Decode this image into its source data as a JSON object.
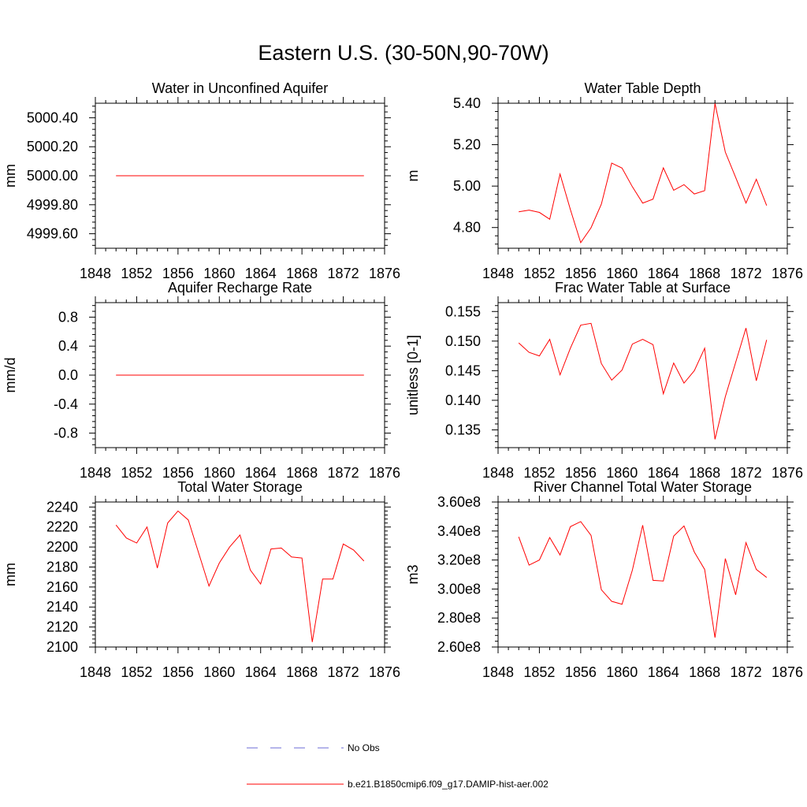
{
  "title": "Eastern U.S. (30-50N,90-70W)",
  "legend": [
    {
      "label": "No Obs",
      "style": "dashed",
      "color": "#6b6bd6"
    },
    {
      "label": "b.e21.B1850cmip6.f09_g17.DAMIP-hist-aer.002",
      "style": "solid",
      "color": "#ff0000"
    }
  ],
  "chart_data": [
    {
      "type": "line",
      "title": "Water in Unconfined Aquifer",
      "xlabel": "",
      "ylabel": "mm",
      "xlim": [
        1848,
        1876
      ],
      "ylim": [
        4999.5,
        5000.5
      ],
      "xticks": [
        1848,
        1852,
        1856,
        1860,
        1864,
        1868,
        1872,
        1876
      ],
      "xtick_labels": [
        "1848",
        "1852",
        "1856",
        "1860",
        "1864",
        "1868",
        "1872",
        "1876"
      ],
      "yticks": [
        4999.6,
        4999.8,
        5000.0,
        5000.2,
        5000.4
      ],
      "ytick_labels": [
        "4999.60",
        "4999.80",
        "5000.00",
        "5000.20",
        "5000.40"
      ],
      "x": [
        1850,
        1851,
        1852,
        1853,
        1854,
        1855,
        1856,
        1857,
        1858,
        1859,
        1860,
        1861,
        1862,
        1863,
        1864,
        1865,
        1866,
        1867,
        1868,
        1869,
        1870,
        1871,
        1872,
        1873,
        1874
      ],
      "series": [
        {
          "color": "#ff0000",
          "values": [
            5000,
            5000,
            5000,
            5000,
            5000,
            5000,
            5000,
            5000,
            5000,
            5000,
            5000,
            5000,
            5000,
            5000,
            5000,
            5000,
            5000,
            5000,
            5000,
            5000,
            5000,
            5000,
            5000,
            5000,
            5000
          ]
        }
      ]
    },
    {
      "type": "line",
      "title": "Water Table Depth",
      "xlabel": "",
      "ylabel": "m",
      "xlim": [
        1848,
        1876
      ],
      "ylim": [
        4.7,
        5.4
      ],
      "xticks": [
        1848,
        1852,
        1856,
        1860,
        1864,
        1868,
        1872,
        1876
      ],
      "xtick_labels": [
        "1848",
        "1852",
        "1856",
        "1860",
        "1864",
        "1868",
        "1872",
        "1876"
      ],
      "yticks": [
        4.8,
        5.0,
        5.2,
        5.4
      ],
      "ytick_labels": [
        "4.80",
        "5.00",
        "5.20",
        "5.40"
      ],
      "x": [
        1850,
        1851,
        1852,
        1853,
        1854,
        1855,
        1856,
        1857,
        1858,
        1859,
        1860,
        1861,
        1862,
        1863,
        1864,
        1865,
        1866,
        1867,
        1868,
        1869,
        1870,
        1871,
        1872,
        1873,
        1874
      ],
      "series": [
        {
          "color": "#ff0000",
          "values": [
            4.876,
            4.884,
            4.873,
            4.84,
            5.058,
            4.887,
            4.727,
            4.799,
            4.913,
            5.111,
            5.087,
            4.997,
            4.918,
            4.937,
            5.088,
            4.98,
            5.007,
            4.962,
            4.978,
            5.399,
            5.164,
            5.042,
            4.918,
            5.033,
            4.906
          ]
        }
      ]
    },
    {
      "type": "line",
      "title": "Aquifer Recharge Rate",
      "xlabel": "",
      "ylabel": "mm/d",
      "xlim": [
        1848,
        1876
      ],
      "ylim": [
        -1.0,
        1.0
      ],
      "xticks": [
        1848,
        1852,
        1856,
        1860,
        1864,
        1868,
        1872,
        1876
      ],
      "xtick_labels": [
        "1848",
        "1852",
        "1856",
        "1860",
        "1864",
        "1868",
        "1872",
        "1876"
      ],
      "yticks": [
        -0.8,
        -0.4,
        0.0,
        0.4,
        0.8
      ],
      "ytick_labels": [
        "-0.8",
        "-0.4",
        "0.0",
        "0.4",
        "0.8"
      ],
      "x": [
        1850,
        1851,
        1852,
        1853,
        1854,
        1855,
        1856,
        1857,
        1858,
        1859,
        1860,
        1861,
        1862,
        1863,
        1864,
        1865,
        1866,
        1867,
        1868,
        1869,
        1870,
        1871,
        1872,
        1873,
        1874
      ],
      "series": [
        {
          "color": "#ff0000",
          "values": [
            0,
            0,
            0,
            0,
            0,
            0,
            0,
            0,
            0,
            0,
            0,
            0,
            0,
            0,
            0,
            0,
            0,
            0,
            0,
            0,
            0,
            0,
            0,
            0,
            0
          ]
        }
      ]
    },
    {
      "type": "line",
      "title": "Frac Water Table at Surface",
      "xlabel": "",
      "ylabel": "unitless [0-1]",
      "xlim": [
        1848,
        1876
      ],
      "ylim": [
        0.132,
        0.1565
      ],
      "xticks": [
        1848,
        1852,
        1856,
        1860,
        1864,
        1868,
        1872,
        1876
      ],
      "xtick_labels": [
        "1848",
        "1852",
        "1856",
        "1860",
        "1864",
        "1868",
        "1872",
        "1876"
      ],
      "yticks": [
        0.135,
        0.14,
        0.145,
        0.15,
        0.155
      ],
      "ytick_labels": [
        "0.135",
        "0.140",
        "0.145",
        "0.150",
        "0.155"
      ],
      "x": [
        1850,
        1851,
        1852,
        1853,
        1854,
        1855,
        1856,
        1857,
        1858,
        1859,
        1860,
        1861,
        1862,
        1863,
        1864,
        1865,
        1866,
        1867,
        1868,
        1869,
        1870,
        1871,
        1872,
        1873,
        1874
      ],
      "series": [
        {
          "color": "#ff0000",
          "values": [
            0.1497,
            0.1481,
            0.1475,
            0.1503,
            0.1443,
            0.1488,
            0.1527,
            0.153,
            0.1462,
            0.1434,
            0.1451,
            0.1495,
            0.1503,
            0.1494,
            0.1411,
            0.1463,
            0.1429,
            0.145,
            0.1488,
            0.1334,
            0.1406,
            0.1464,
            0.1522,
            0.1433,
            0.1502
          ]
        }
      ]
    },
    {
      "type": "line",
      "title": "Total Water Storage",
      "xlabel": "",
      "ylabel": "mm",
      "xlim": [
        1848,
        1876
      ],
      "ylim": [
        2100,
        2245
      ],
      "xticks": [
        1848,
        1852,
        1856,
        1860,
        1864,
        1868,
        1872,
        1876
      ],
      "xtick_labels": [
        "1848",
        "1852",
        "1856",
        "1860",
        "1864",
        "1868",
        "1872",
        "1876"
      ],
      "yticks": [
        2100,
        2120,
        2140,
        2160,
        2180,
        2200,
        2220,
        2240
      ],
      "ytick_labels": [
        "2100",
        "2120",
        "2140",
        "2160",
        "2180",
        "2200",
        "2220",
        "2240"
      ],
      "x": [
        1850,
        1851,
        1852,
        1853,
        1854,
        1855,
        1856,
        1857,
        1858,
        1859,
        1860,
        1861,
        1862,
        1863,
        1864,
        1865,
        1866,
        1867,
        1868,
        1869,
        1870,
        1871,
        1872,
        1873,
        1874
      ],
      "series": [
        {
          "color": "#ff0000",
          "values": [
            2222,
            2209,
            2204,
            2220,
            2179,
            2224,
            2236,
            2227,
            2194,
            2161,
            2184,
            2200,
            2212,
            2177,
            2163,
            2198,
            2199,
            2190,
            2189,
            2105,
            2168,
            2168,
            2203,
            2197,
            2186
          ]
        }
      ]
    },
    {
      "type": "line",
      "title": "River Channel Total Water Storage",
      "xlabel": "",
      "ylabel": "m3",
      "xlim": [
        1848,
        1876
      ],
      "ylim": [
        260000000,
        360000000
      ],
      "xticks": [
        1848,
        1852,
        1856,
        1860,
        1864,
        1868,
        1872,
        1876
      ],
      "xtick_labels": [
        "1848",
        "1852",
        "1856",
        "1860",
        "1864",
        "1868",
        "1872",
        "1876"
      ],
      "yticks": [
        260000000,
        280000000,
        300000000,
        320000000,
        340000000,
        360000000
      ],
      "ytick_labels": [
        "2.60e8",
        "2.80e8",
        "3.00e8",
        "3.20e8",
        "3.40e8",
        "3.60e8"
      ],
      "x": [
        1850,
        1851,
        1852,
        1853,
        1854,
        1855,
        1856,
        1857,
        1858,
        1859,
        1860,
        1861,
        1862,
        1863,
        1864,
        1865,
        1866,
        1867,
        1868,
        1869,
        1870,
        1871,
        1872,
        1873,
        1874
      ],
      "series": [
        {
          "color": "#ff0000",
          "values": [
            336000000,
            316500000,
            320000000,
            335500000,
            323500000,
            343000000,
            346500000,
            337000000,
            299500000,
            291500000,
            289500000,
            313000000,
            344000000,
            306000000,
            305500000,
            336500000,
            343500000,
            325500000,
            313500000,
            266500000,
            321000000,
            296000000,
            332000000,
            313500000,
            308000000
          ]
        }
      ]
    }
  ]
}
